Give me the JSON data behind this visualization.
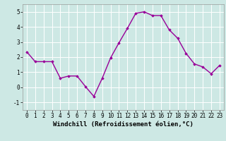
{
  "x": [
    0,
    1,
    2,
    3,
    4,
    5,
    6,
    7,
    8,
    9,
    10,
    11,
    12,
    13,
    14,
    15,
    16,
    17,
    18,
    19,
    20,
    21,
    22,
    23
  ],
  "y": [
    2.35,
    1.7,
    1.7,
    1.7,
    0.6,
    0.75,
    0.75,
    0.05,
    -0.6,
    0.6,
    1.95,
    2.95,
    3.9,
    4.9,
    5.0,
    4.75,
    4.75,
    3.8,
    3.25,
    2.25,
    1.55,
    1.35,
    0.9,
    1.45
  ],
  "line_color": "#990099",
  "marker": "D",
  "markersize": 1.8,
  "linewidth": 1.0,
  "xlabel": "Windchill (Refroidissement éolien,°C)",
  "xlim": [
    -0.5,
    23.5
  ],
  "ylim": [
    -1.5,
    5.5
  ],
  "yticks": [
    -1,
    0,
    1,
    2,
    3,
    4,
    5
  ],
  "xticks": [
    0,
    1,
    2,
    3,
    4,
    5,
    6,
    7,
    8,
    9,
    10,
    11,
    12,
    13,
    14,
    15,
    16,
    17,
    18,
    19,
    20,
    21,
    22,
    23
  ],
  "background_color": "#cde8e4",
  "grid_color": "#ffffff",
  "tick_fontsize": 5.5,
  "xlabel_fontsize": 6.5
}
